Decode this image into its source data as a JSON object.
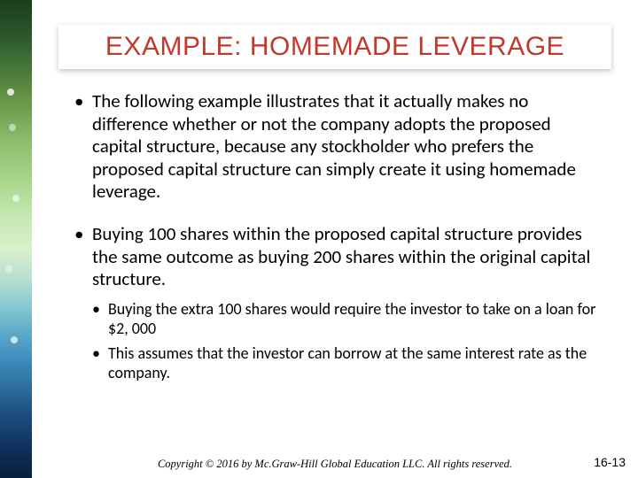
{
  "title": {
    "text": "EXAMPLE: HOMEMADE LEVERAGE",
    "color": "#c0392b"
  },
  "bullets": [
    {
      "text": "The following example illustrates that it actually makes no difference whether or not the company adopts the proposed capital structure, because any stockholder who prefers the proposed capital structure can simply create it using homemade leverage."
    },
    {
      "text": "Buying 100 shares within the proposed capital structure provides the same outcome as buying 200 shares within the original capital structure.",
      "sub": [
        "Buying the extra 100 shares would require the investor to take on a loan for $2, 000",
        "This assumes that the investor can borrow at the same interest rate as the company."
      ]
    }
  ],
  "footer": {
    "copyright": "Copyright © 2016 by Mc.Graw-Hill Global Education LLC. All rights reserved.",
    "page": "16-13"
  }
}
